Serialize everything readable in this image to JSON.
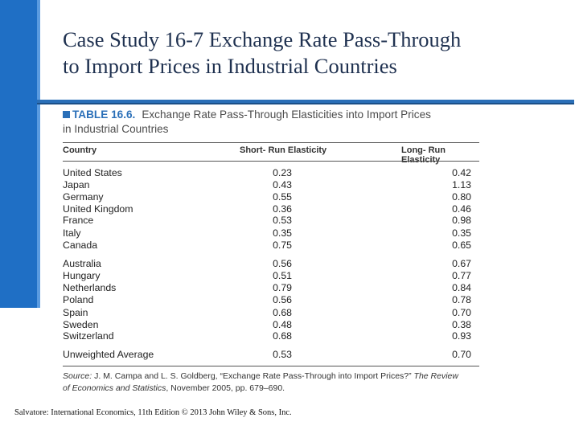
{
  "slide": {
    "title_line1": "Case Study 16-7  Exchange Rate Pass-Through",
    "title_line2": "to Import Prices in Industrial Countries"
  },
  "table": {
    "number": "TABLE 16.6.",
    "title_line1": "Exchange Rate Pass-Through Elasticities into Import Prices",
    "title_line2": "in Industrial Countries",
    "headers": {
      "country": "Country",
      "short": "Short- Run Elasticity",
      "long": "Long- Run Elasticity"
    },
    "rows": [
      {
        "country": "United States",
        "short": "0.23",
        "long": "0.42"
      },
      {
        "country": "Japan",
        "short": "0.43",
        "long": "1.13"
      },
      {
        "country": "Germany",
        "short": "0.55",
        "long": "0.80"
      },
      {
        "country": "United Kingdom",
        "short": "0.36",
        "long": "0.46"
      },
      {
        "country": "France",
        "short": "0.53",
        "long": "0.98"
      },
      {
        "country": "Italy",
        "short": "0.35",
        "long": "0.35"
      },
      {
        "country": "Canada",
        "short": "0.75",
        "long": "0.65"
      },
      {
        "country": "Australia",
        "short": "0.56",
        "long": "0.67"
      },
      {
        "country": "Hungary",
        "short": "0.51",
        "long": "0.77"
      },
      {
        "country": "Netherlands",
        "short": "0.79",
        "long": "0.84"
      },
      {
        "country": "Poland",
        "short": "0.56",
        "long": "0.78"
      },
      {
        "country": "Spain",
        "short": "0.68",
        "long": "0.70"
      },
      {
        "country": "Sweden",
        "short": "0.48",
        "long": "0.38"
      },
      {
        "country": "Switzerland",
        "short": "0.68",
        "long": "0.93"
      },
      {
        "country": "Unweighted Average",
        "short": "0.53",
        "long": "0.70"
      }
    ],
    "source": {
      "label": "Source:",
      "text1": " J. M. Campa and L. S. Goldberg, “Exchange Rate Pass-Through into Import Prices?” ",
      "journal_a": "The Review",
      "journal_b": "of Economics and Statistics",
      "text2": ", November 2005, pp. 679–690."
    }
  },
  "footer": "Salvatore: International Economics, 11th Edition © 2013 John Wiley & Sons, Inc."
}
